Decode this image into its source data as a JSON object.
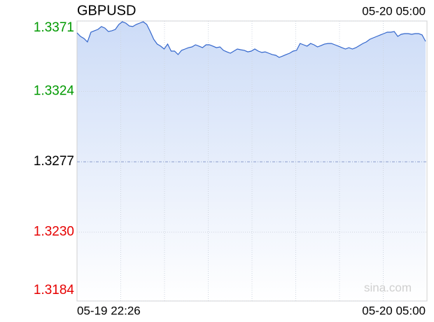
{
  "chart_data": {
    "type": "line",
    "title": "GBPUSD",
    "timestamp": "05-20 05:00",
    "watermark": "sina.com",
    "categories": [
      "05-19 22:26",
      null,
      null,
      null,
      null,
      null,
      null,
      null,
      null,
      null,
      null,
      null,
      null,
      null,
      null,
      null,
      null,
      null,
      null,
      null,
      null,
      null,
      null,
      null,
      null,
      null,
      null,
      null,
      null,
      null,
      null,
      null,
      null,
      null,
      null,
      null,
      null,
      null,
      null,
      null,
      null,
      null,
      null,
      null,
      null,
      null,
      null,
      null,
      null,
      null,
      null,
      null,
      null,
      null,
      null,
      null,
      null,
      null,
      null,
      null,
      null,
      null,
      null,
      null,
      null,
      null,
      null,
      null,
      null,
      null,
      null,
      null,
      null,
      null,
      null,
      null,
      null,
      null,
      null,
      null,
      null,
      null,
      null,
      null,
      null,
      null,
      null,
      null,
      null,
      null,
      null,
      null,
      null,
      null,
      null,
      null,
      null,
      null,
      null,
      null,
      "05-20 05:00"
    ],
    "series": [
      {
        "name": "GBPUSD",
        "color": "#3366cc",
        "values": [
          1.33631,
          1.33607,
          1.33593,
          1.3357,
          1.33635,
          1.33645,
          1.33654,
          1.33673,
          1.33663,
          1.3364,
          1.33645,
          1.33654,
          1.33687,
          1.33705,
          1.33696,
          1.33677,
          1.33673,
          1.33687,
          1.33696,
          1.33705,
          1.33687,
          1.3364,
          1.33588,
          1.33556,
          1.33542,
          1.33523,
          1.33556,
          1.33509,
          1.33509,
          1.33486,
          1.33514,
          1.33523,
          1.33532,
          1.33537,
          1.33551,
          1.33542,
          1.33532,
          1.33551,
          1.33551,
          1.33542,
          1.33532,
          1.33537,
          1.33514,
          1.33504,
          1.33495,
          1.33509,
          1.33523,
          1.33518,
          1.33514,
          1.33504,
          1.33509,
          1.33523,
          1.33509,
          1.335,
          1.33504,
          1.33495,
          1.33486,
          1.33481,
          1.33467,
          1.33476,
          1.33486,
          1.33495,
          1.33509,
          1.33514,
          1.3356,
          1.33551,
          1.33542,
          1.3356,
          1.33551,
          1.33537,
          1.33546,
          1.33556,
          1.3356,
          1.3356,
          1.33551,
          1.33542,
          1.33532,
          1.33523,
          1.33532,
          1.33523,
          1.33532,
          1.33546,
          1.3356,
          1.3357,
          1.33588,
          1.33598,
          1.33607,
          1.33617,
          1.33626,
          1.33635,
          1.33635,
          1.3364,
          1.33607,
          1.33621,
          1.33626,
          1.33626,
          1.33621,
          1.33626,
          1.33626,
          1.33617,
          1.33574
        ]
      }
    ],
    "ylim": [
      1.3184,
      1.3371
    ],
    "yticks": [
      {
        "value": 1.3371,
        "label": "1.3371"
      },
      {
        "value": 1.3324,
        "label": "1.3324"
      },
      {
        "value": 1.3277,
        "label": "1.3277"
      },
      {
        "value": 1.323,
        "label": "1.3230"
      },
      {
        "value": 1.3184,
        "label": "1.3184"
      }
    ],
    "up_color": "#009900",
    "down_color": "#e60000",
    "grid": true
  }
}
